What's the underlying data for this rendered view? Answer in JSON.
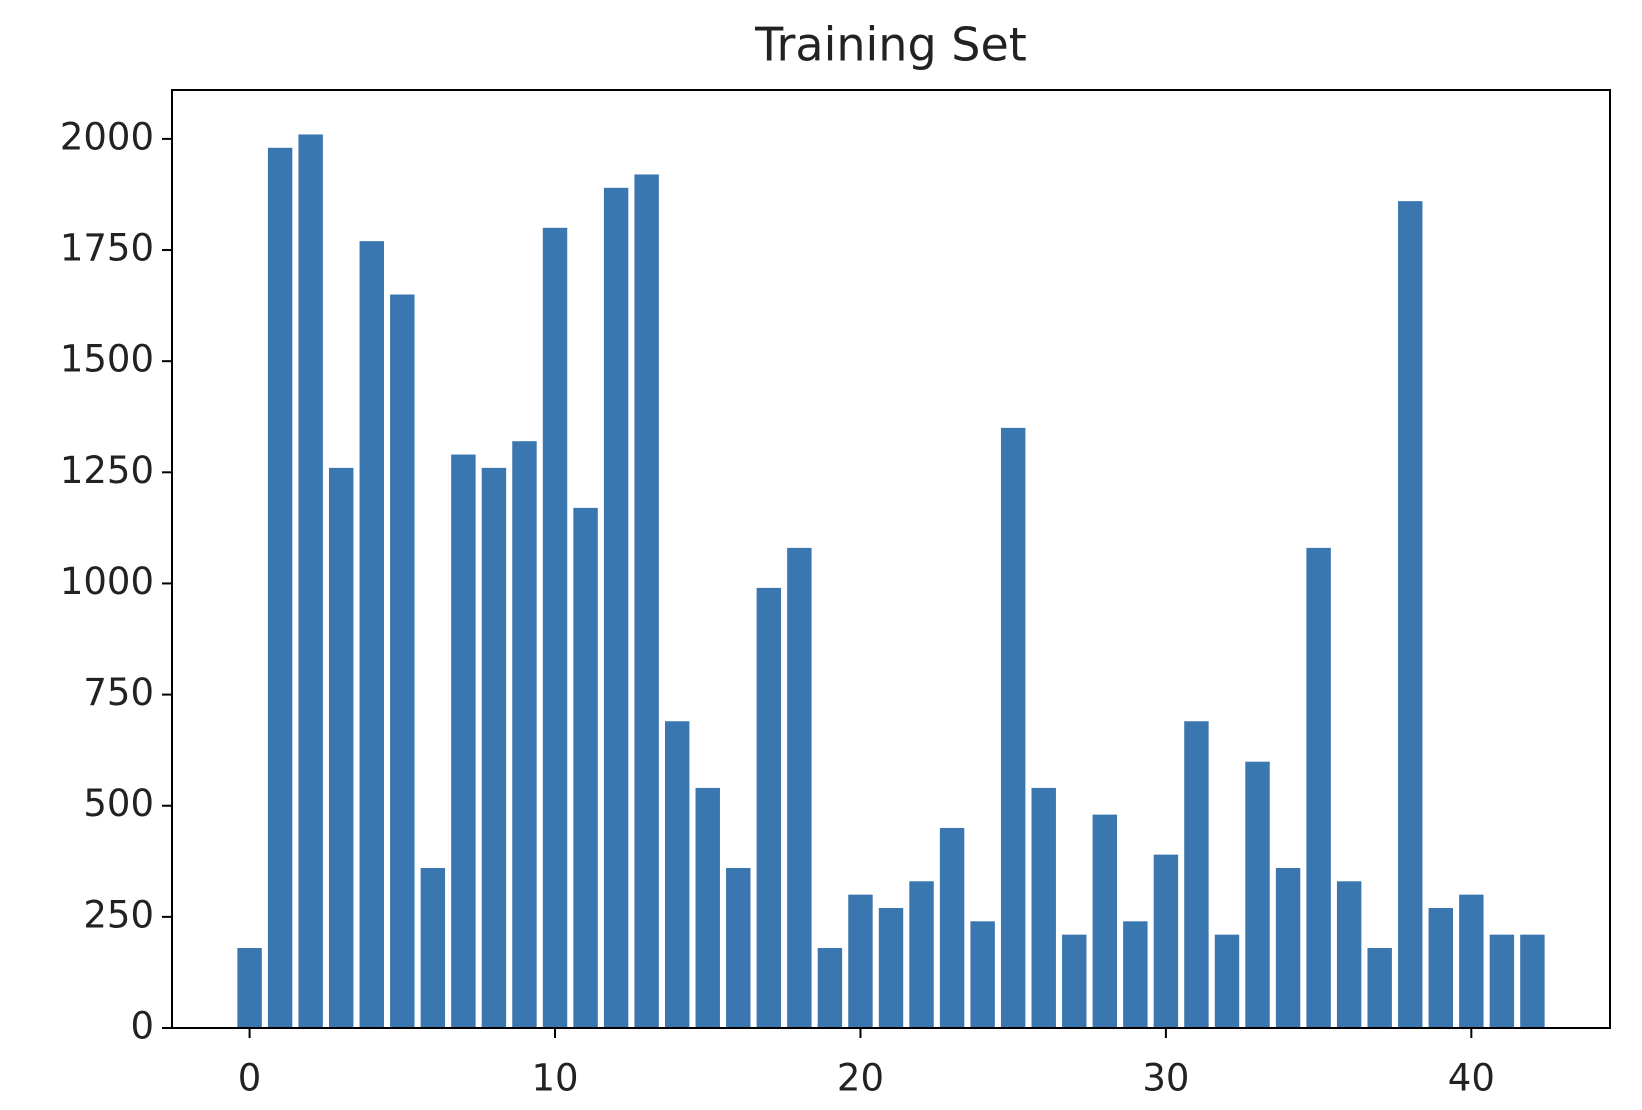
{
  "chart_data": {
    "type": "bar",
    "title": "Training Set",
    "x": [
      0,
      1,
      2,
      3,
      4,
      5,
      6,
      7,
      8,
      9,
      10,
      11,
      12,
      13,
      14,
      15,
      16,
      17,
      18,
      19,
      20,
      21,
      22,
      23,
      24,
      25,
      26,
      27,
      28,
      29,
      30,
      31,
      32,
      33,
      34,
      35,
      36,
      37,
      38,
      39,
      40,
      41,
      42
    ],
    "values": [
      180,
      1980,
      2010,
      1260,
      1770,
      1650,
      360,
      1290,
      1260,
      1320,
      1800,
      1170,
      1890,
      1920,
      690,
      540,
      360,
      990,
      1080,
      180,
      300,
      270,
      330,
      450,
      240,
      1350,
      540,
      210,
      480,
      240,
      390,
      690,
      210,
      599,
      360,
      1080,
      330,
      180,
      1860,
      270,
      300,
      210,
      210
    ],
    "color": "#3a76af",
    "xlim": [
      -2.54,
      44.54
    ],
    "xticks": [
      0,
      10,
      20,
      30,
      40
    ],
    "ylim": [
      0,
      2110
    ],
    "yticks": [
      0,
      250,
      500,
      750,
      1000,
      1250,
      1500,
      1750,
      2000
    ],
    "grid": false
  }
}
